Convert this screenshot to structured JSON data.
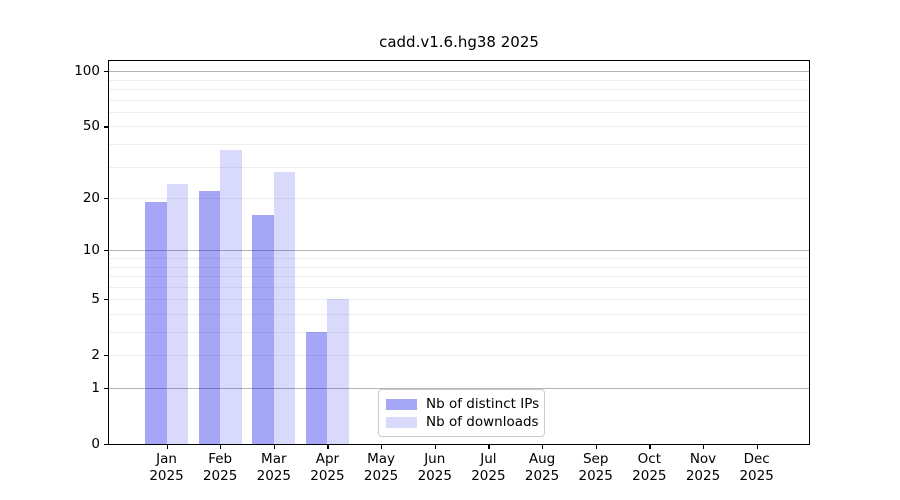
{
  "title": "cadd.v1.6.hg38 2025",
  "chart_data": {
    "type": "bar",
    "title": "cadd.v1.6.hg38 2025",
    "yscale": "log1p",
    "ylim": [
      0,
      115
    ],
    "yticks": [
      0,
      1,
      2,
      5,
      10,
      20,
      50,
      100
    ],
    "grid_major_values": [
      1,
      10,
      100
    ],
    "grid_minor_values": [
      2,
      3,
      4,
      5,
      6,
      7,
      8,
      9,
      20,
      30,
      40,
      50,
      60,
      70,
      80,
      90
    ],
    "grid": "horizontal",
    "categories": [
      "Jan 2025",
      "Feb 2025",
      "Mar 2025",
      "Apr 2025",
      "May 2025",
      "Jun 2025",
      "Jul 2025",
      "Aug 2025",
      "Sep 2025",
      "Oct 2025",
      "Nov 2025",
      "Dec 2025"
    ],
    "series": [
      {
        "name": "Nb of distinct IPs",
        "color": "rgba(0,0,230,0.35)",
        "values": [
          19,
          22,
          16,
          3,
          0,
          0,
          0,
          0,
          0,
          0,
          0,
          0
        ]
      },
      {
        "name": "Nb of downloads",
        "color": "rgba(0,0,230,0.15)",
        "values": [
          24,
          37,
          28,
          5,
          0,
          0,
          0,
          0,
          0,
          0,
          0,
          0
        ]
      }
    ],
    "legend_position": "lower center"
  },
  "colors": {
    "background": "#ffffff",
    "spine": "#000000",
    "text": "#000000",
    "grid_major": "#b4b4b4",
    "grid_minor": "#efefef",
    "legend_border": "#cccccc"
  }
}
